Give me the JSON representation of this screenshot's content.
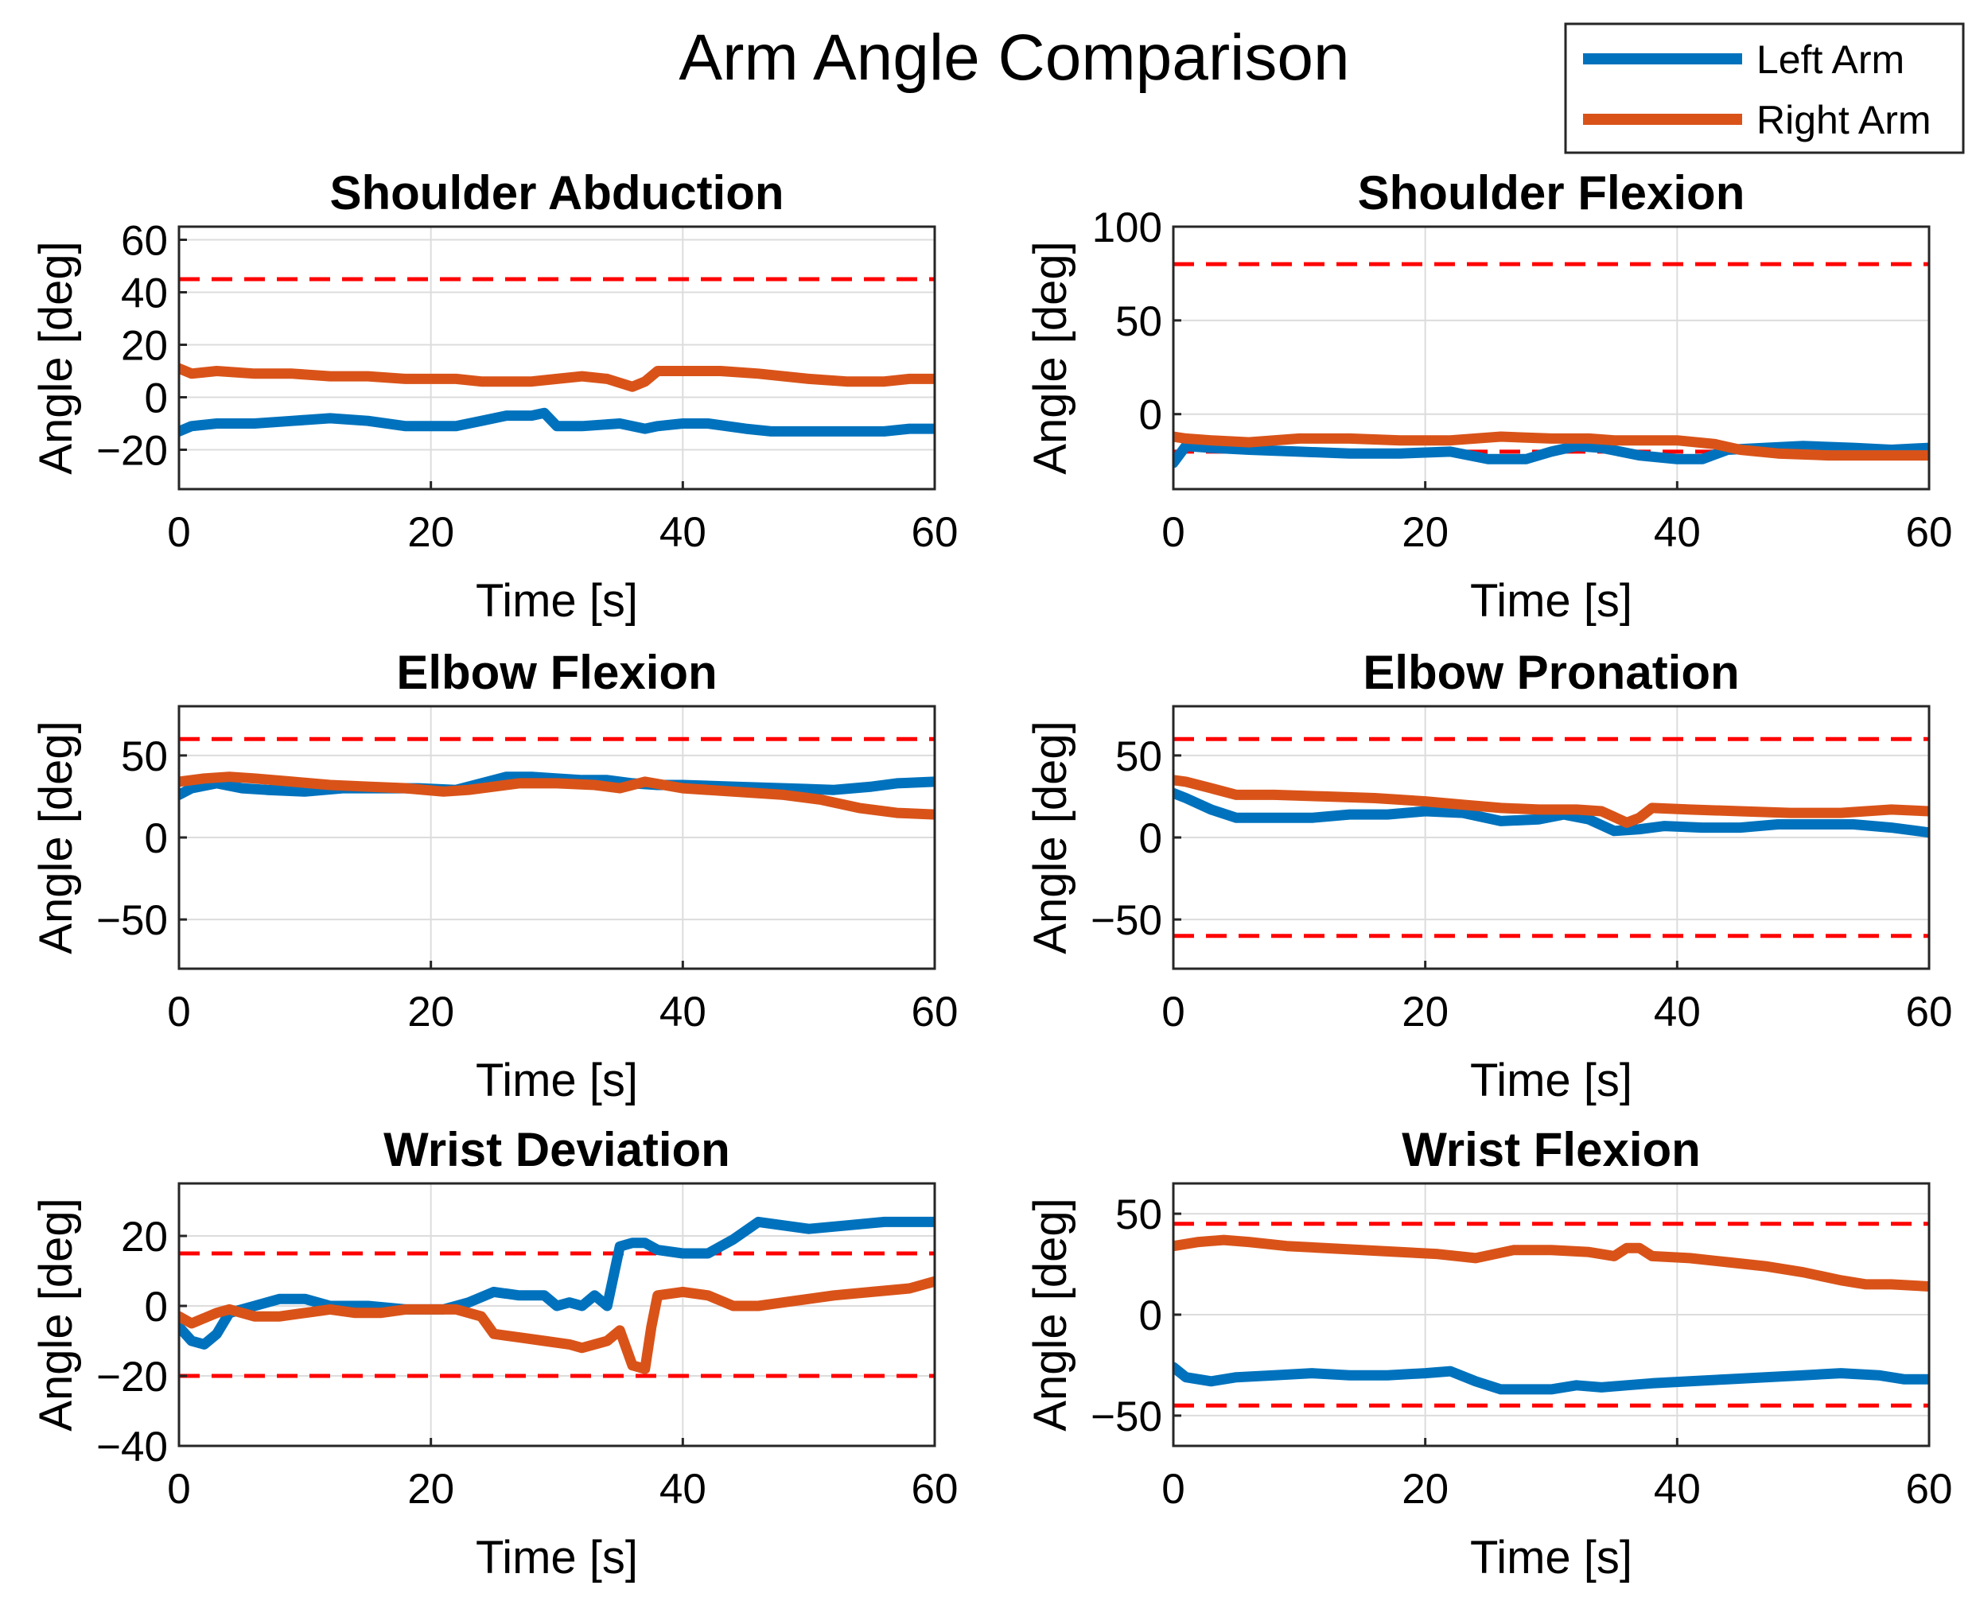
{
  "figure": {
    "title": "Arm Angle Comparison",
    "legend": {
      "placement": "top-right",
      "entries": [
        {
          "label": "Left Arm",
          "color": "#0072BD"
        },
        {
          "label": "Right Arm",
          "color": "#D95319"
        }
      ]
    },
    "threshold_color": "#FF0000",
    "grid_color": "#DCDCDC"
  },
  "chart_data": [
    {
      "type": "line",
      "title": "Shoulder Abduction",
      "xlabel": "Time [s]",
      "ylabel": "Angle [deg]",
      "xlim": [
        0,
        60
      ],
      "ylim": [
        -35,
        65
      ],
      "xticks": [
        0,
        20,
        40,
        60
      ],
      "yticks": [
        -20,
        0,
        20,
        40,
        60
      ],
      "ytick_labels": [
        "−20",
        "0",
        "20",
        "40",
        "60"
      ],
      "thresholds": [
        45
      ],
      "series": [
        {
          "name": "Left Arm",
          "x": [
            0,
            1,
            3,
            6,
            9,
            12,
            15,
            18,
            20,
            22,
            24,
            26,
            28,
            29,
            30,
            32,
            35,
            37,
            38,
            40,
            42,
            45,
            47,
            50,
            53,
            56,
            58,
            60
          ],
          "y": [
            -13,
            -11,
            -10,
            -10,
            -9,
            -8,
            -9,
            -11,
            -11,
            -11,
            -9,
            -7,
            -7,
            -6,
            -11,
            -11,
            -10,
            -12,
            -11,
            -10,
            -10,
            -12,
            -13,
            -13,
            -13,
            -13,
            -12,
            -12
          ]
        },
        {
          "name": "Right Arm",
          "x": [
            0,
            1,
            3,
            6,
            9,
            12,
            15,
            18,
            20,
            22,
            24,
            26,
            28,
            30,
            32,
            34,
            36,
            37,
            38,
            40,
            43,
            46,
            50,
            53,
            56,
            58,
            60
          ],
          "y": [
            11,
            9,
            10,
            9,
            9,
            8,
            8,
            7,
            7,
            7,
            6,
            6,
            6,
            7,
            8,
            7,
            4,
            6,
            10,
            10,
            10,
            9,
            7,
            6,
            6,
            7,
            7
          ]
        }
      ]
    },
    {
      "type": "line",
      "title": "Shoulder Flexion",
      "xlabel": "Time [s]",
      "ylabel": "Angle [deg]",
      "xlim": [
        0,
        60
      ],
      "ylim": [
        -40,
        100
      ],
      "xticks": [
        0,
        20,
        40,
        60
      ],
      "yticks": [
        0,
        50,
        100
      ],
      "ytick_labels": [
        "0",
        "50",
        "100"
      ],
      "thresholds": [
        80,
        -20
      ],
      "series": [
        {
          "name": "Left Arm",
          "x": [
            0,
            1,
            3,
            6,
            10,
            14,
            18,
            22,
            25,
            28,
            30,
            32,
            34,
            37,
            40,
            42,
            44,
            47,
            50,
            54,
            57,
            60
          ],
          "y": [
            -26,
            -17,
            -18,
            -19,
            -20,
            -21,
            -21,
            -20,
            -24,
            -24,
            -20,
            -17,
            -18,
            -22,
            -24,
            -24,
            -19,
            -18,
            -17,
            -18,
            -19,
            -18
          ]
        },
        {
          "name": "Right Arm",
          "x": [
            0,
            1,
            3,
            6,
            10,
            14,
            18,
            22,
            26,
            30,
            33,
            35,
            37,
            40,
            43,
            45,
            48,
            52,
            56,
            60
          ],
          "y": [
            -12,
            -13,
            -14,
            -15,
            -13,
            -13,
            -14,
            -14,
            -12,
            -13,
            -13,
            -14,
            -14,
            -14,
            -16,
            -19,
            -21,
            -22,
            -22,
            -22
          ]
        }
      ]
    },
    {
      "type": "line",
      "title": "Elbow Flexion",
      "xlabel": "Time [s]",
      "ylabel": "Angle [deg]",
      "xlim": [
        0,
        60
      ],
      "ylim": [
        -80,
        80
      ],
      "xticks": [
        0,
        20,
        40,
        60
      ],
      "yticks": [
        -50,
        0,
        50
      ],
      "ytick_labels": [
        "−50",
        "0",
        "50"
      ],
      "thresholds": [
        60
      ],
      "series": [
        {
          "name": "Left Arm",
          "x": [
            0,
            1,
            3,
            5,
            7,
            10,
            13,
            16,
            19,
            22,
            24,
            26,
            28,
            30,
            32,
            34,
            36,
            38,
            40,
            44,
            48,
            52,
            55,
            57,
            60
          ],
          "y": [
            26,
            30,
            33,
            30,
            29,
            28,
            30,
            30,
            30,
            29,
            33,
            37,
            37,
            36,
            35,
            35,
            33,
            32,
            32,
            31,
            30,
            29,
            31,
            33,
            34
          ]
        },
        {
          "name": "Right Arm",
          "x": [
            0,
            2,
            4,
            6,
            9,
            12,
            15,
            18,
            21,
            23,
            25,
            27,
            30,
            33,
            35,
            37,
            40,
            44,
            48,
            51,
            54,
            57,
            60
          ],
          "y": [
            34,
            36,
            37,
            36,
            34,
            32,
            31,
            30,
            28,
            29,
            31,
            33,
            33,
            32,
            30,
            34,
            30,
            28,
            26,
            23,
            18,
            15,
            14
          ]
        }
      ]
    },
    {
      "type": "line",
      "title": "Elbow Pronation",
      "xlabel": "Time [s]",
      "ylabel": "Angle [deg]",
      "xlim": [
        0,
        60
      ],
      "ylim": [
        -80,
        80
      ],
      "xticks": [
        0,
        20,
        40,
        60
      ],
      "yticks": [
        -50,
        0,
        50
      ],
      "ytick_labels": [
        "−50",
        "0",
        "50"
      ],
      "thresholds": [
        60,
        -60
      ],
      "series": [
        {
          "name": "Left Arm",
          "x": [
            0,
            1,
            3,
            5,
            8,
            11,
            14,
            17,
            20,
            23,
            26,
            29,
            31,
            33,
            35,
            37,
            39,
            42,
            45,
            48,
            51,
            54,
            57,
            60
          ],
          "y": [
            27,
            24,
            17,
            12,
            12,
            12,
            14,
            14,
            16,
            15,
            10,
            11,
            14,
            11,
            4,
            5,
            7,
            6,
            6,
            8,
            8,
            8,
            6,
            3
          ]
        },
        {
          "name": "Right Arm",
          "x": [
            0,
            1,
            3,
            5,
            8,
            12,
            16,
            20,
            23,
            26,
            29,
            32,
            34,
            36,
            37,
            38,
            41,
            45,
            49,
            53,
            57,
            60
          ],
          "y": [
            35,
            34,
            30,
            26,
            26,
            25,
            24,
            22,
            20,
            18,
            17,
            17,
            16,
            9,
            12,
            18,
            17,
            16,
            15,
            15,
            17,
            16
          ]
        }
      ]
    },
    {
      "type": "line",
      "title": "Wrist Deviation",
      "xlabel": "Time [s]",
      "ylabel": "Angle [deg]",
      "xlim": [
        0,
        60
      ],
      "ylim": [
        -40,
        35
      ],
      "xticks": [
        0,
        20,
        40,
        60
      ],
      "yticks": [
        -40,
        -20,
        0,
        20
      ],
      "ytick_labels": [
        "−40",
        "−20",
        "0",
        "20"
      ],
      "thresholds": [
        15,
        -20
      ],
      "series": [
        {
          "name": "Left Arm",
          "x": [
            0,
            1,
            2,
            3,
            4,
            6,
            8,
            10,
            12,
            15,
            18,
            21,
            23,
            25,
            27,
            29,
            30,
            31,
            32,
            33,
            34,
            35,
            36,
            37,
            38,
            40,
            42,
            44,
            46,
            48,
            50,
            53,
            56,
            58,
            60
          ],
          "y": [
            -6,
            -10,
            -11,
            -8,
            -2,
            0,
            2,
            2,
            0,
            0,
            -1,
            -1,
            1,
            4,
            3,
            3,
            0,
            1,
            0,
            3,
            0,
            17,
            18,
            18,
            16,
            15,
            15,
            19,
            24,
            23,
            22,
            23,
            24,
            24,
            24
          ]
        },
        {
          "name": "Right Arm",
          "x": [
            0,
            1,
            3,
            4,
            6,
            8,
            10,
            12,
            14,
            16,
            18,
            20,
            22,
            24,
            25,
            27,
            29,
            31,
            32,
            34,
            35,
            36,
            37,
            37.5,
            38,
            40,
            42,
            44,
            46,
            48,
            50,
            52,
            55,
            58,
            60
          ],
          "y": [
            -3,
            -5,
            -2,
            -1,
            -3,
            -3,
            -2,
            -1,
            -2,
            -2,
            -1,
            -1,
            -1,
            -3,
            -8,
            -9,
            -10,
            -11,
            -12,
            -10,
            -7,
            -17,
            -18,
            -6,
            3,
            4,
            3,
            0,
            0,
            1,
            2,
            3,
            4,
            5,
            7
          ]
        }
      ]
    },
    {
      "type": "line",
      "title": "Wrist Flexion",
      "xlabel": "Time [s]",
      "ylabel": "Angle [deg]",
      "xlim": [
        0,
        60
      ],
      "ylim": [
        -65,
        65
      ],
      "xticks": [
        0,
        20,
        40,
        60
      ],
      "yticks": [
        -50,
        0,
        50
      ],
      "ytick_labels": [
        "−50",
        "0",
        "50"
      ],
      "thresholds": [
        45,
        -45
      ],
      "series": [
        {
          "name": "Left Arm",
          "x": [
            0,
            1,
            3,
            5,
            8,
            11,
            14,
            17,
            20,
            22,
            24,
            26,
            28,
            30,
            32,
            34,
            36,
            38,
            41,
            44,
            47,
            50,
            53,
            56,
            58,
            60
          ],
          "y": [
            -26,
            -31,
            -33,
            -31,
            -30,
            -29,
            -30,
            -30,
            -29,
            -28,
            -33,
            -37,
            -37,
            -37,
            -35,
            -36,
            -35,
            -34,
            -33,
            -32,
            -31,
            -30,
            -29,
            -30,
            -32,
            -32
          ]
        },
        {
          "name": "Right Arm",
          "x": [
            0,
            2,
            4,
            6,
            9,
            12,
            15,
            18,
            21,
            24,
            27,
            30,
            33,
            35,
            36,
            37,
            38,
            41,
            44,
            47,
            50,
            53,
            55,
            57,
            60
          ],
          "y": [
            34,
            36,
            37,
            36,
            34,
            33,
            32,
            31,
            30,
            28,
            32,
            32,
            31,
            29,
            33,
            33,
            29,
            28,
            26,
            24,
            21,
            17,
            15,
            15,
            14
          ]
        }
      ]
    }
  ]
}
